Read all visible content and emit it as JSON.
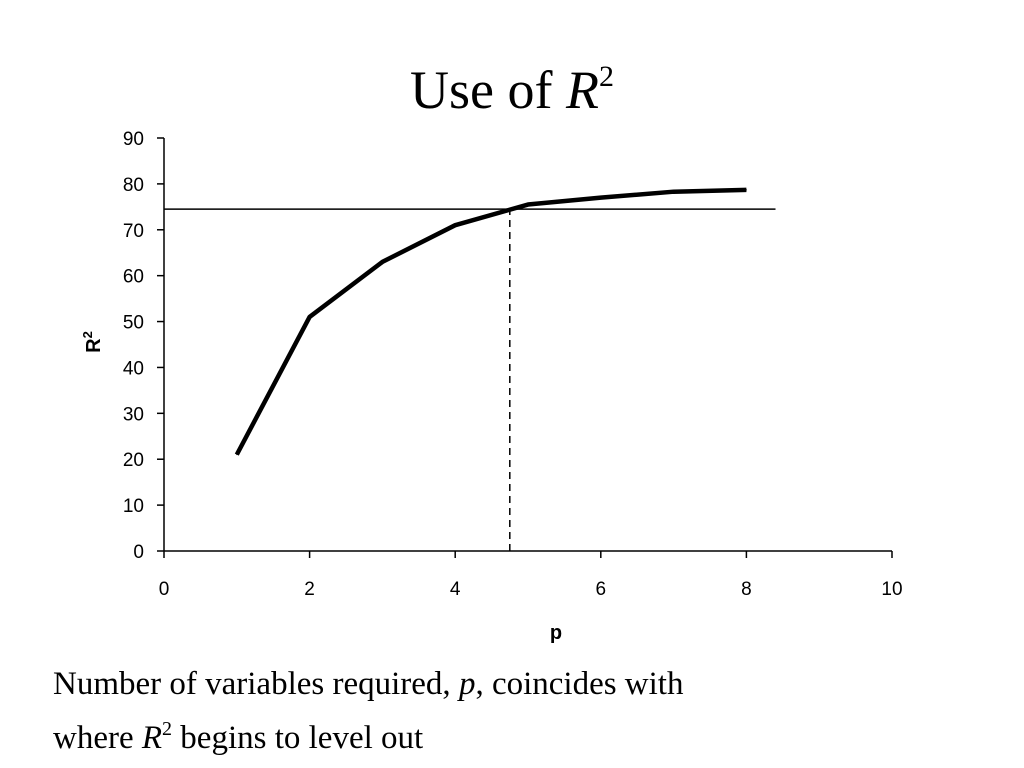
{
  "slide": {
    "title_text": "Use of ",
    "title_symbol": "R",
    "title_superscript": "2",
    "caption_line1_before": "Number of variables required, ",
    "caption_line1_symbol": "p",
    "caption_line1_after": ", coincides with",
    "caption_line2_before": "where ",
    "caption_line2_symbol": "R",
    "caption_line2_superscript": "2",
    "caption_line2_after": " begins to level out"
  },
  "chart_data": {
    "type": "line",
    "xlabel": "p",
    "ylabel": "R",
    "ylabel_superscript": "2",
    "xlim": [
      0,
      10
    ],
    "ylim": [
      0,
      90
    ],
    "x_ticks": [
      0,
      2,
      4,
      6,
      8,
      10
    ],
    "y_ticks": [
      0,
      10,
      20,
      30,
      40,
      50,
      60,
      70,
      80,
      90
    ],
    "grid": false,
    "legend": "none",
    "series": [
      {
        "x": [
          1,
          2,
          3,
          4,
          5,
          6,
          7,
          8
        ],
        "y": [
          21,
          51,
          63,
          71,
          75.5,
          77,
          78.3,
          78.7
        ],
        "color": "#000000"
      }
    ],
    "reference_lines": {
      "horizontal_y": 74.5,
      "horizontal_x_range": [
        0,
        8.4
      ],
      "vertical_dashed_x": 4.75,
      "vertical_dashed_y_range": [
        0,
        74.5
      ]
    }
  }
}
